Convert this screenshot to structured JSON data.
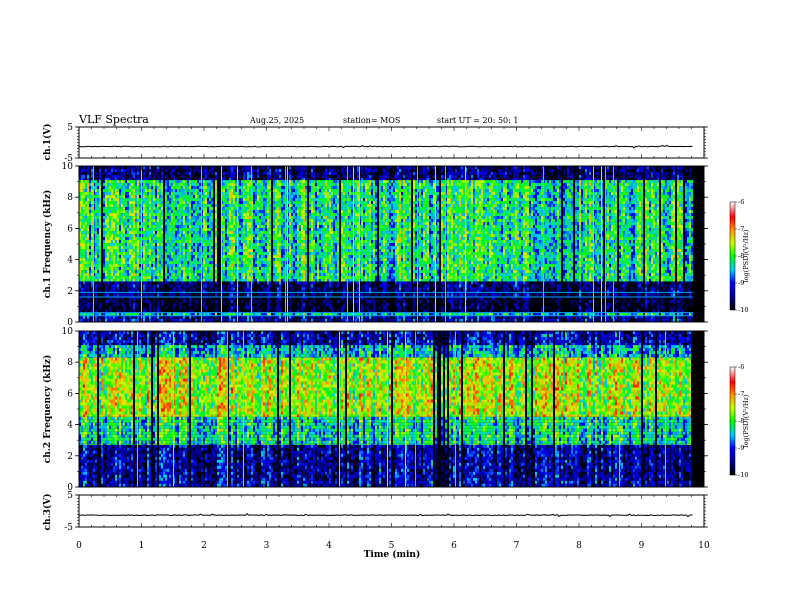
{
  "header": {
    "title": "VLF Spectra",
    "date": "Aug.25, 2025",
    "station": "station= MOS",
    "start_ut": "start UT =   20: 50: 1"
  },
  "chart_data": [
    {
      "type": "line",
      "name": "ch1-waveform",
      "ylabel": "ch.1(V)",
      "ylim": [
        -5,
        5
      ],
      "yticks": [
        "5",
        "-5"
      ],
      "x_range_min": [
        0,
        9.82
      ],
      "level": -1.3
    },
    {
      "type": "heatmap",
      "name": "ch1-spectrogram",
      "ylabel": "ch.1 Frequency (kHz)",
      "ylim": [
        0,
        10
      ],
      "yticks": [
        "10",
        "8",
        "6",
        "4",
        "2",
        "0"
      ],
      "x_range_min": [
        0,
        9.82
      ],
      "colorbar": {
        "label": "log(PSD)(V²/Hz)",
        "range": [
          -10,
          -6
        ],
        "ticks": [
          "-6",
          "-7",
          "-8",
          "-9",
          "-10"
        ]
      },
      "bands": [
        {
          "f_khz": [
            0.0,
            0.4
          ],
          "level": -9.3
        },
        {
          "f_khz": [
            0.4,
            0.6
          ],
          "level": -8.4
        },
        {
          "f_khz": [
            0.6,
            1.6
          ],
          "level": -9.9
        },
        {
          "f_khz": [
            1.6,
            2.6
          ],
          "level": -9.6
        },
        {
          "f_khz": [
            2.6,
            9.1
          ],
          "level": -8.2
        },
        {
          "f_khz": [
            9.1,
            10.0
          ],
          "level": -9.6
        }
      ],
      "lines_khz": [
        0.4,
        0.6,
        1.6,
        1.9
      ]
    },
    {
      "type": "heatmap",
      "name": "ch2-spectrogram",
      "ylabel": "ch.2 Frequency (kHz)",
      "ylim": [
        0,
        10
      ],
      "yticks": [
        "10",
        "8",
        "6",
        "4",
        "2",
        "0"
      ],
      "x_range_min": [
        0,
        9.82
      ],
      "colorbar": {
        "label": "log(PSD)(V²/Hz)",
        "range": [
          -10,
          -6
        ],
        "ticks": [
          "-6",
          "-7",
          "-8",
          "-9",
          "-10"
        ]
      },
      "bands": [
        {
          "f_khz": [
            0.0,
            0.4
          ],
          "level": -9.3
        },
        {
          "f_khz": [
            0.4,
            2.7
          ],
          "level": -9.4
        },
        {
          "f_khz": [
            2.7,
            4.5
          ],
          "level": -8.3
        },
        {
          "f_khz": [
            4.5,
            8.3
          ],
          "level": -7.6
        },
        {
          "f_khz": [
            8.3,
            9.1
          ],
          "level": -8.5
        },
        {
          "f_khz": [
            9.1,
            10.0
          ],
          "level": -9.3
        }
      ],
      "lines_khz": []
    },
    {
      "type": "line",
      "name": "ch3-waveform",
      "ylabel": "ch.3(V)",
      "ylim": [
        -5,
        5
      ],
      "yticks": [
        "5",
        "-5"
      ],
      "x_range_min": [
        0,
        9.82
      ],
      "level": -1.3
    }
  ],
  "xaxis": {
    "label": "Time  (min)",
    "xlim": [
      0,
      10
    ],
    "ticks": [
      "0",
      "1",
      "2",
      "3",
      "4",
      "5",
      "6",
      "7",
      "8",
      "9",
      "10"
    ]
  }
}
